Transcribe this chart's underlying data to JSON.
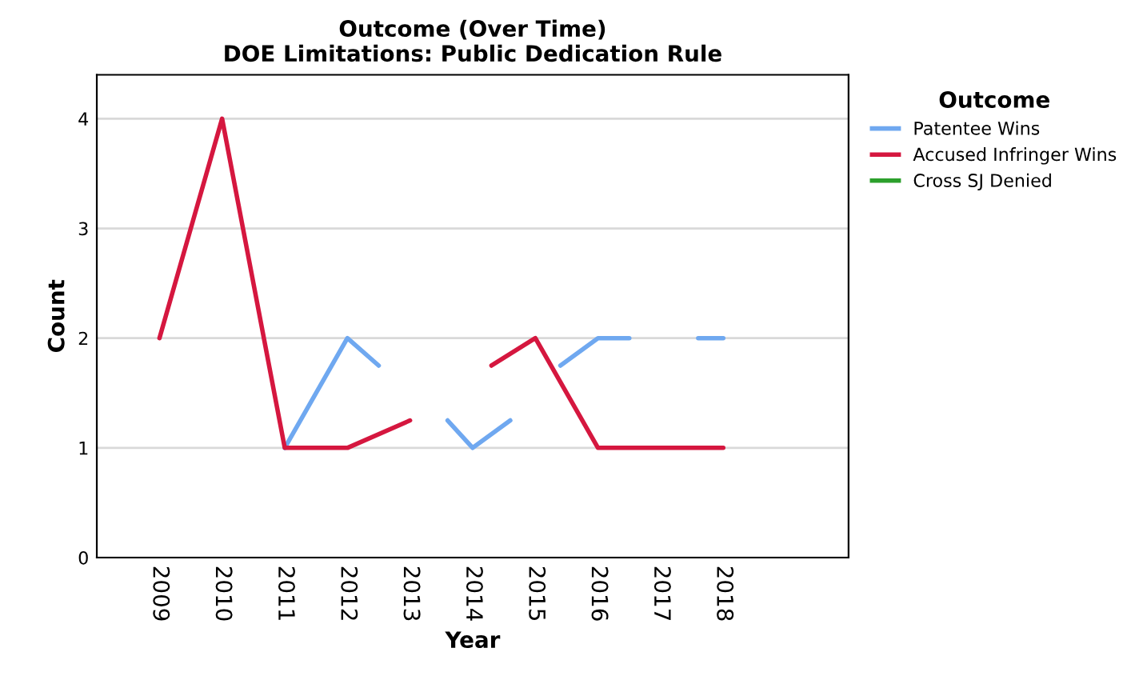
{
  "chart_data": {
    "type": "line",
    "title": "Outcome (Over Time)\nDOE Limitations: Public Dedication Rule",
    "xlabel": "Year",
    "ylabel": "Count",
    "legend_title": "Outcome",
    "xlim": [
      2008,
      2020
    ],
    "xticks": [
      2009,
      2010,
      2011,
      2012,
      2013,
      2014,
      2015,
      2016,
      2017,
      2018
    ],
    "ylim": [
      0,
      4.4
    ],
    "yticks": [
      0,
      1,
      2,
      3,
      4
    ],
    "grid": "y",
    "legend": "right",
    "marker": "none",
    "line_style": "solid",
    "series": [
      {
        "name": "Patentee Wins",
        "color": "#6fa8f0",
        "x": [
          2011,
          2012,
          2012.5,
          2013,
          2013.6,
          2014,
          2014.6,
          2015,
          2015.4,
          2016,
          2016.5,
          2017,
          2017.6,
          2018
        ],
        "values": [
          1,
          2,
          1.75,
          null,
          1.25,
          1,
          1.25,
          null,
          1.75,
          2,
          2,
          null,
          2,
          2
        ]
      },
      {
        "name": "Accused Infringer Wins",
        "color": "#d5173f",
        "x": [
          2009,
          2010,
          2011,
          2012,
          2013,
          2013.5,
          2014.3,
          2015,
          2016,
          2017,
          2018
        ],
        "values": [
          2,
          4,
          1,
          1,
          1.25,
          null,
          1.75,
          2,
          1,
          1,
          1
        ]
      },
      {
        "name": "Cross SJ Denied",
        "color": "#2ca02c"
      }
    ]
  }
}
